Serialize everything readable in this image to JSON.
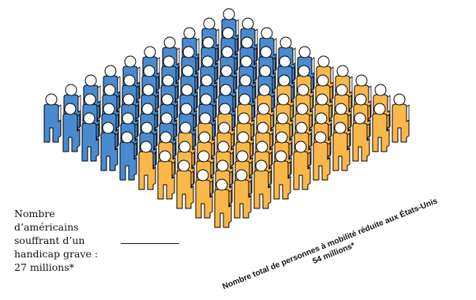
{
  "infographic": {
    "left_label_lines": [
      "Nombre",
      "d’américains",
      "souffrant d’un",
      "handicap grave :",
      "27 millions*"
    ],
    "diagonal_caption_line1": "Nombre total de personnes à mobilité réduite aux États-Unis",
    "diagonal_caption_line2": "54 millions*",
    "figure_grid": {
      "rows": 10,
      "columns": 10,
      "blue_count": 50,
      "orange_count": 50
    },
    "colors": {
      "blue_figure": "#4A8BD0",
      "orange_figure": "#FBB84A",
      "outline": "#000000",
      "head": "#FFFFFF"
    },
    "icon": "person-icon"
  }
}
